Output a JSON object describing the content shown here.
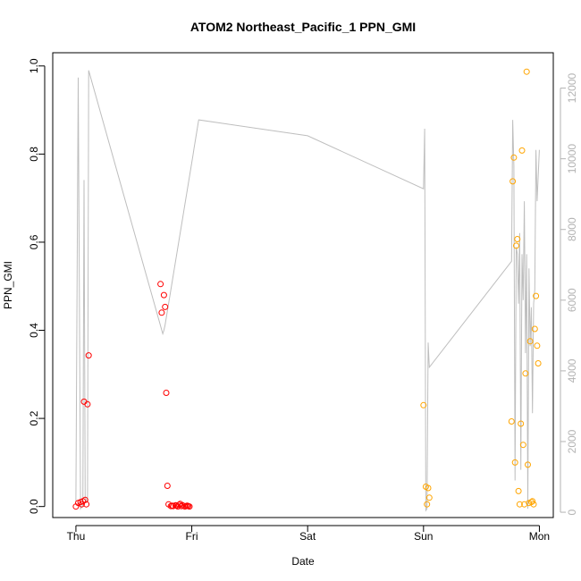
{
  "chart_data": {
    "type": "scatter",
    "title": "ATOM2 Northeast_Pacific_1 PPN_GMI",
    "xlabel": "Date",
    "ylabel": "PPN_GMI",
    "x_tick_labels": [
      "Thu",
      "Fri",
      "Sat",
      "Sun",
      "Mon"
    ],
    "x_ticks_days": [
      0,
      1,
      2,
      3,
      4
    ],
    "xlim_days": [
      -0.2,
      4.12
    ],
    "ylim": [
      -0.025,
      1.03
    ],
    "y_ticks": [
      0.0,
      0.2,
      0.4,
      0.6,
      0.8,
      1.0
    ],
    "y_tick_labels": [
      "0.0",
      "0.2",
      "0.4",
      "0.6",
      "0.8",
      "1.0"
    ],
    "y2lim": [
      -150,
      13000
    ],
    "y2_ticks": [
      0,
      2000,
      4000,
      6000,
      8000,
      10000,
      12000
    ],
    "y2_tick_labels": [
      "0",
      "2000",
      "4000",
      "6000",
      "8000",
      "10000",
      "12000"
    ],
    "series": [
      {
        "color": "#ff0000",
        "marker": "open-circle",
        "points": [
          [
            0.0,
            0.0
          ],
          [
            0.02,
            0.008
          ],
          [
            0.04,
            0.01
          ],
          [
            0.05,
            0.005
          ],
          [
            0.06,
            0.012
          ],
          [
            0.07,
            0.238
          ],
          [
            0.08,
            0.015
          ],
          [
            0.09,
            0.005
          ],
          [
            0.1,
            0.232
          ],
          [
            0.11,
            0.343
          ],
          [
            0.73,
            0.505
          ],
          [
            0.74,
            0.44
          ],
          [
            0.76,
            0.48
          ],
          [
            0.77,
            0.453
          ],
          [
            0.78,
            0.258
          ],
          [
            0.79,
            0.047
          ],
          [
            0.8,
            0.005
          ],
          [
            0.82,
            0.001
          ],
          [
            0.83,
            0.002
          ],
          [
            0.84,
            0.001
          ],
          [
            0.86,
            0.003
          ],
          [
            0.87,
            0.002
          ],
          [
            0.88,
            0.0
          ],
          [
            0.89,
            0.004
          ],
          [
            0.9,
            0.006
          ],
          [
            0.91,
            0.001
          ],
          [
            0.92,
            0.003
          ],
          [
            0.94,
            0.0
          ],
          [
            0.95,
            0.001
          ],
          [
            0.96,
            0.002
          ],
          [
            0.97,
            0.001
          ],
          [
            0.98,
            0.0
          ]
        ]
      },
      {
        "color": "#ffa500",
        "marker": "open-circle",
        "points": [
          [
            3.0,
            0.23
          ],
          [
            3.02,
            0.045
          ],
          [
            3.03,
            0.005
          ],
          [
            3.04,
            0.042
          ],
          [
            3.05,
            0.02
          ],
          [
            3.76,
            0.193
          ],
          [
            3.77,
            0.738
          ],
          [
            3.78,
            0.792
          ],
          [
            3.79,
            0.1
          ],
          [
            3.8,
            0.592
          ],
          [
            3.81,
            0.607
          ],
          [
            3.82,
            0.035
          ],
          [
            3.83,
            0.005
          ],
          [
            3.84,
            0.188
          ],
          [
            3.85,
            0.808
          ],
          [
            3.86,
            0.14
          ],
          [
            3.87,
            0.005
          ],
          [
            3.88,
            0.302
          ],
          [
            3.89,
            0.987
          ],
          [
            3.9,
            0.095
          ],
          [
            3.91,
            0.008
          ],
          [
            3.92,
            0.375
          ],
          [
            3.93,
            0.01
          ],
          [
            3.94,
            0.012
          ],
          [
            3.95,
            0.005
          ],
          [
            3.96,
            0.403
          ],
          [
            3.97,
            0.478
          ],
          [
            3.98,
            0.365
          ],
          [
            3.99,
            0.325
          ]
        ]
      },
      {
        "color": "#bebebe",
        "type": "line",
        "axis": "right",
        "points": [
          [
            0.0,
            300
          ],
          [
            0.02,
            12300
          ],
          [
            0.04,
            100
          ],
          [
            0.06,
            200
          ],
          [
            0.07,
            9400
          ],
          [
            0.08,
            400
          ],
          [
            0.1,
            300
          ],
          [
            0.11,
            12500
          ],
          [
            0.75,
            5050
          ],
          [
            0.76,
            5150
          ],
          [
            0.77,
            5300
          ],
          [
            0.78,
            5500
          ],
          [
            0.79,
            5700
          ],
          [
            0.8,
            5900
          ],
          [
            0.81,
            6100
          ],
          [
            0.82,
            6300
          ],
          [
            0.83,
            6500
          ],
          [
            0.84,
            6700
          ],
          [
            0.85,
            6900
          ],
          [
            0.86,
            7100
          ],
          [
            0.87,
            7300
          ],
          [
            0.88,
            7500
          ],
          [
            0.89,
            7700
          ],
          [
            0.9,
            7900
          ],
          [
            0.91,
            8100
          ],
          [
            0.92,
            8300
          ],
          [
            0.93,
            8500
          ],
          [
            0.94,
            8700
          ],
          [
            0.95,
            8900
          ],
          [
            0.96,
            9100
          ],
          [
            0.97,
            9300
          ],
          [
            0.98,
            9500
          ],
          [
            0.99,
            9700
          ],
          [
            1.0,
            9900
          ],
          [
            1.01,
            10100
          ],
          [
            1.02,
            10300
          ],
          [
            1.03,
            10500
          ],
          [
            1.04,
            10700
          ],
          [
            1.05,
            10900
          ],
          [
            1.06,
            11100
          ],
          [
            2.0,
            10650
          ],
          [
            3.0,
            9150
          ],
          [
            3.01,
            10850
          ],
          [
            3.02,
            50
          ],
          [
            3.03,
            100
          ],
          [
            3.04,
            4800
          ],
          [
            3.05,
            4100
          ],
          [
            3.76,
            7100
          ],
          [
            3.77,
            11100
          ],
          [
            3.78,
            9800
          ],
          [
            3.79,
            900
          ],
          [
            3.8,
            7500
          ],
          [
            3.81,
            7300
          ],
          [
            3.82,
            5900
          ],
          [
            3.83,
            7900
          ],
          [
            3.84,
            1200
          ],
          [
            3.85,
            7300
          ],
          [
            3.86,
            6000
          ],
          [
            3.87,
            8800
          ],
          [
            3.88,
            4500
          ],
          [
            3.89,
            7300
          ],
          [
            3.9,
            100
          ],
          [
            3.91,
            6900
          ],
          [
            3.92,
            4700
          ],
          [
            3.93,
            5800
          ],
          [
            3.94,
            2800
          ],
          [
            3.95,
            5900
          ],
          [
            3.96,
            6300
          ],
          [
            3.97,
            10250
          ],
          [
            3.98,
            8800
          ],
          [
            3.99,
            9500
          ],
          [
            4.0,
            10250
          ]
        ]
      }
    ],
    "grid": false,
    "legend": "none"
  }
}
